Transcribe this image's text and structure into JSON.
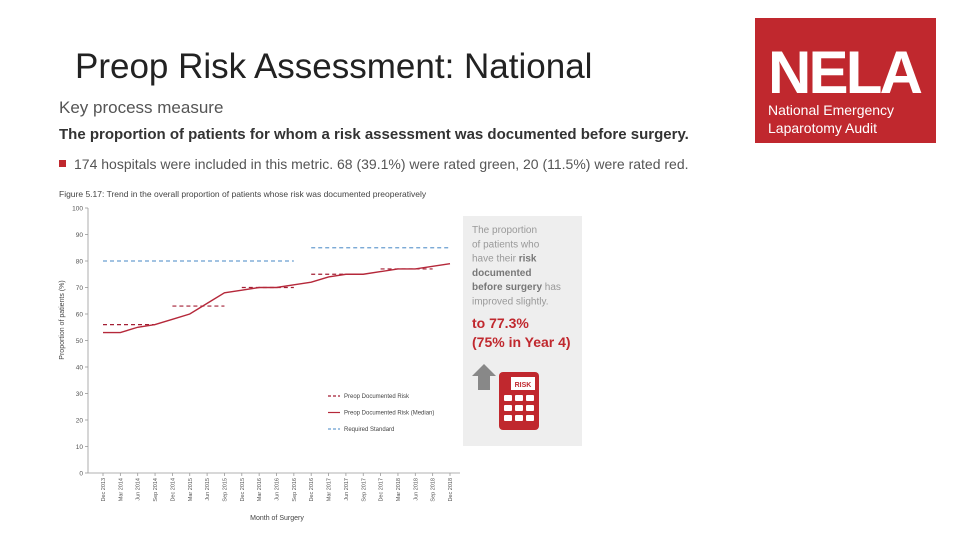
{
  "slide": {
    "title": "Preop Risk Assessment: National",
    "heading": "Key process measure",
    "subheading": "The proportion of patients for whom a risk assessment was documented before surgery.",
    "bullet": "174 hospitals were included in this metric. 68 (39.1%) were rated green, 20 (11.5%) were rated red.",
    "logo": {
      "name": "NELA",
      "line1": "National Emergency",
      "line2": "Laparotomy Audit"
    },
    "panel": {
      "lines": [
        [
          {
            "text": "The proportion",
            "bold": false
          }
        ],
        [
          {
            "text": "of patients who",
            "bold": false
          }
        ],
        [
          {
            "text": "have their ",
            "bold": false
          },
          {
            "text": "risk",
            "bold": true
          }
        ],
        [
          {
            "text": "documented",
            "bold": true
          }
        ],
        [
          {
            "text": "before surgery",
            "bold": true
          },
          {
            "text": " has",
            "bold": false
          }
        ],
        [
          {
            "text": "improved slightly.",
            "bold": false
          }
        ]
      ],
      "highlight1": "to 77.3%",
      "highlight2": "(75% in Year 4)",
      "icon_label": "RISK"
    }
  },
  "chart_data": {
    "type": "line",
    "title": "Figure 5.17: Trend in the overall proportion of patients whose risk was documented preoperatively",
    "x_label": "Month of Surgery",
    "y_label": "Proportion of patients (%)",
    "categories": [
      "Dec 2013",
      "Mar 2014",
      "Jun 2014",
      "Sep 2014",
      "Dec 2014",
      "Mar 2015",
      "Jun 2015",
      "Sep 2015",
      "Dec 2015",
      "Mar 2016",
      "Jun 2016",
      "Sep 2016",
      "Dec 2016",
      "Mar 2017",
      "Jun 2017",
      "Sep 2017",
      "Dec 2017",
      "Mar 2018",
      "Jun 2018",
      "Sep 2018",
      "Dec 2018"
    ],
    "series": [
      {
        "name": "Preop Documented Risk",
        "color": "#a31f34",
        "dashed": true,
        "values": [
          56,
          56,
          56,
          56,
          63,
          63,
          63,
          63,
          70,
          70,
          70,
          70,
          75,
          75,
          75,
          75,
          77,
          77,
          77,
          77,
          null
        ]
      },
      {
        "name": "Preop Documented Risk (Median)",
        "color": "#b5283a",
        "dashed": false,
        "values": [
          53,
          53,
          55,
          56,
          58,
          60,
          64,
          68,
          69,
          70,
          70,
          71,
          72,
          74,
          75,
          75,
          76,
          77,
          77,
          78,
          79
        ]
      },
      {
        "name": "Required Standard",
        "color": "#6a9fd0",
        "dashed": true,
        "values": [
          80,
          80,
          80,
          80,
          80,
          80,
          80,
          80,
          80,
          80,
          80,
          80,
          85,
          85,
          85,
          85,
          85,
          85,
          85,
          85,
          85
        ]
      }
    ],
    "ylim": [
      0,
      100
    ],
    "yticks": [
      0,
      10,
      20,
      30,
      40,
      50,
      60,
      70,
      80,
      90,
      100
    ]
  }
}
